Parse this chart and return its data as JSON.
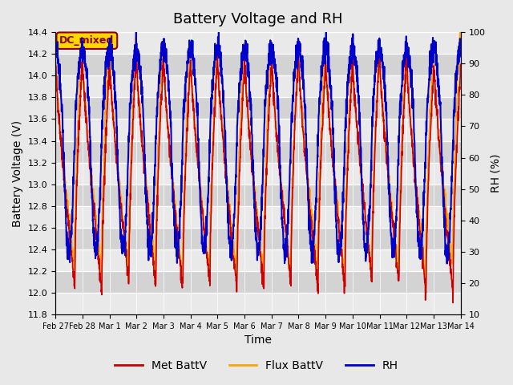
{
  "title": "Battery Voltage and RH",
  "xlabel": "Time",
  "ylabel_left": "Battery Voltage (V)",
  "ylabel_right": "RH (%)",
  "ylim_left": [
    11.8,
    14.4
  ],
  "ylim_right": [
    10,
    100
  ],
  "annotation_text": "DC_mixed",
  "annotation_color": "#8B0000",
  "annotation_bg": "#FFD700",
  "legend": [
    "Met BattV",
    "Flux BattV",
    "RH"
  ],
  "color_met": "#CC0000",
  "color_flux": "#FFA500",
  "color_rh": "#0000CC",
  "lw_met": 1.2,
  "lw_flux": 1.2,
  "lw_rh": 1.5,
  "xtick_labels": [
    "Feb 27",
    "Feb 28",
    "Mar 1",
    "Mar 2",
    "Mar 3",
    "Mar 4",
    "Mar 5",
    "Mar 6",
    "Mar 7",
    "Mar 8",
    "Mar 9",
    "Mar 10",
    "Mar 11",
    "Mar 12",
    "Mar 13",
    "Mar 14"
  ],
  "num_days": 15,
  "background_color": "#E8E8E8",
  "plot_bg": "#D3D3D3",
  "grid_color": "white",
  "title_fontsize": 13,
  "axis_label_fontsize": 10,
  "tick_fontsize": 8
}
